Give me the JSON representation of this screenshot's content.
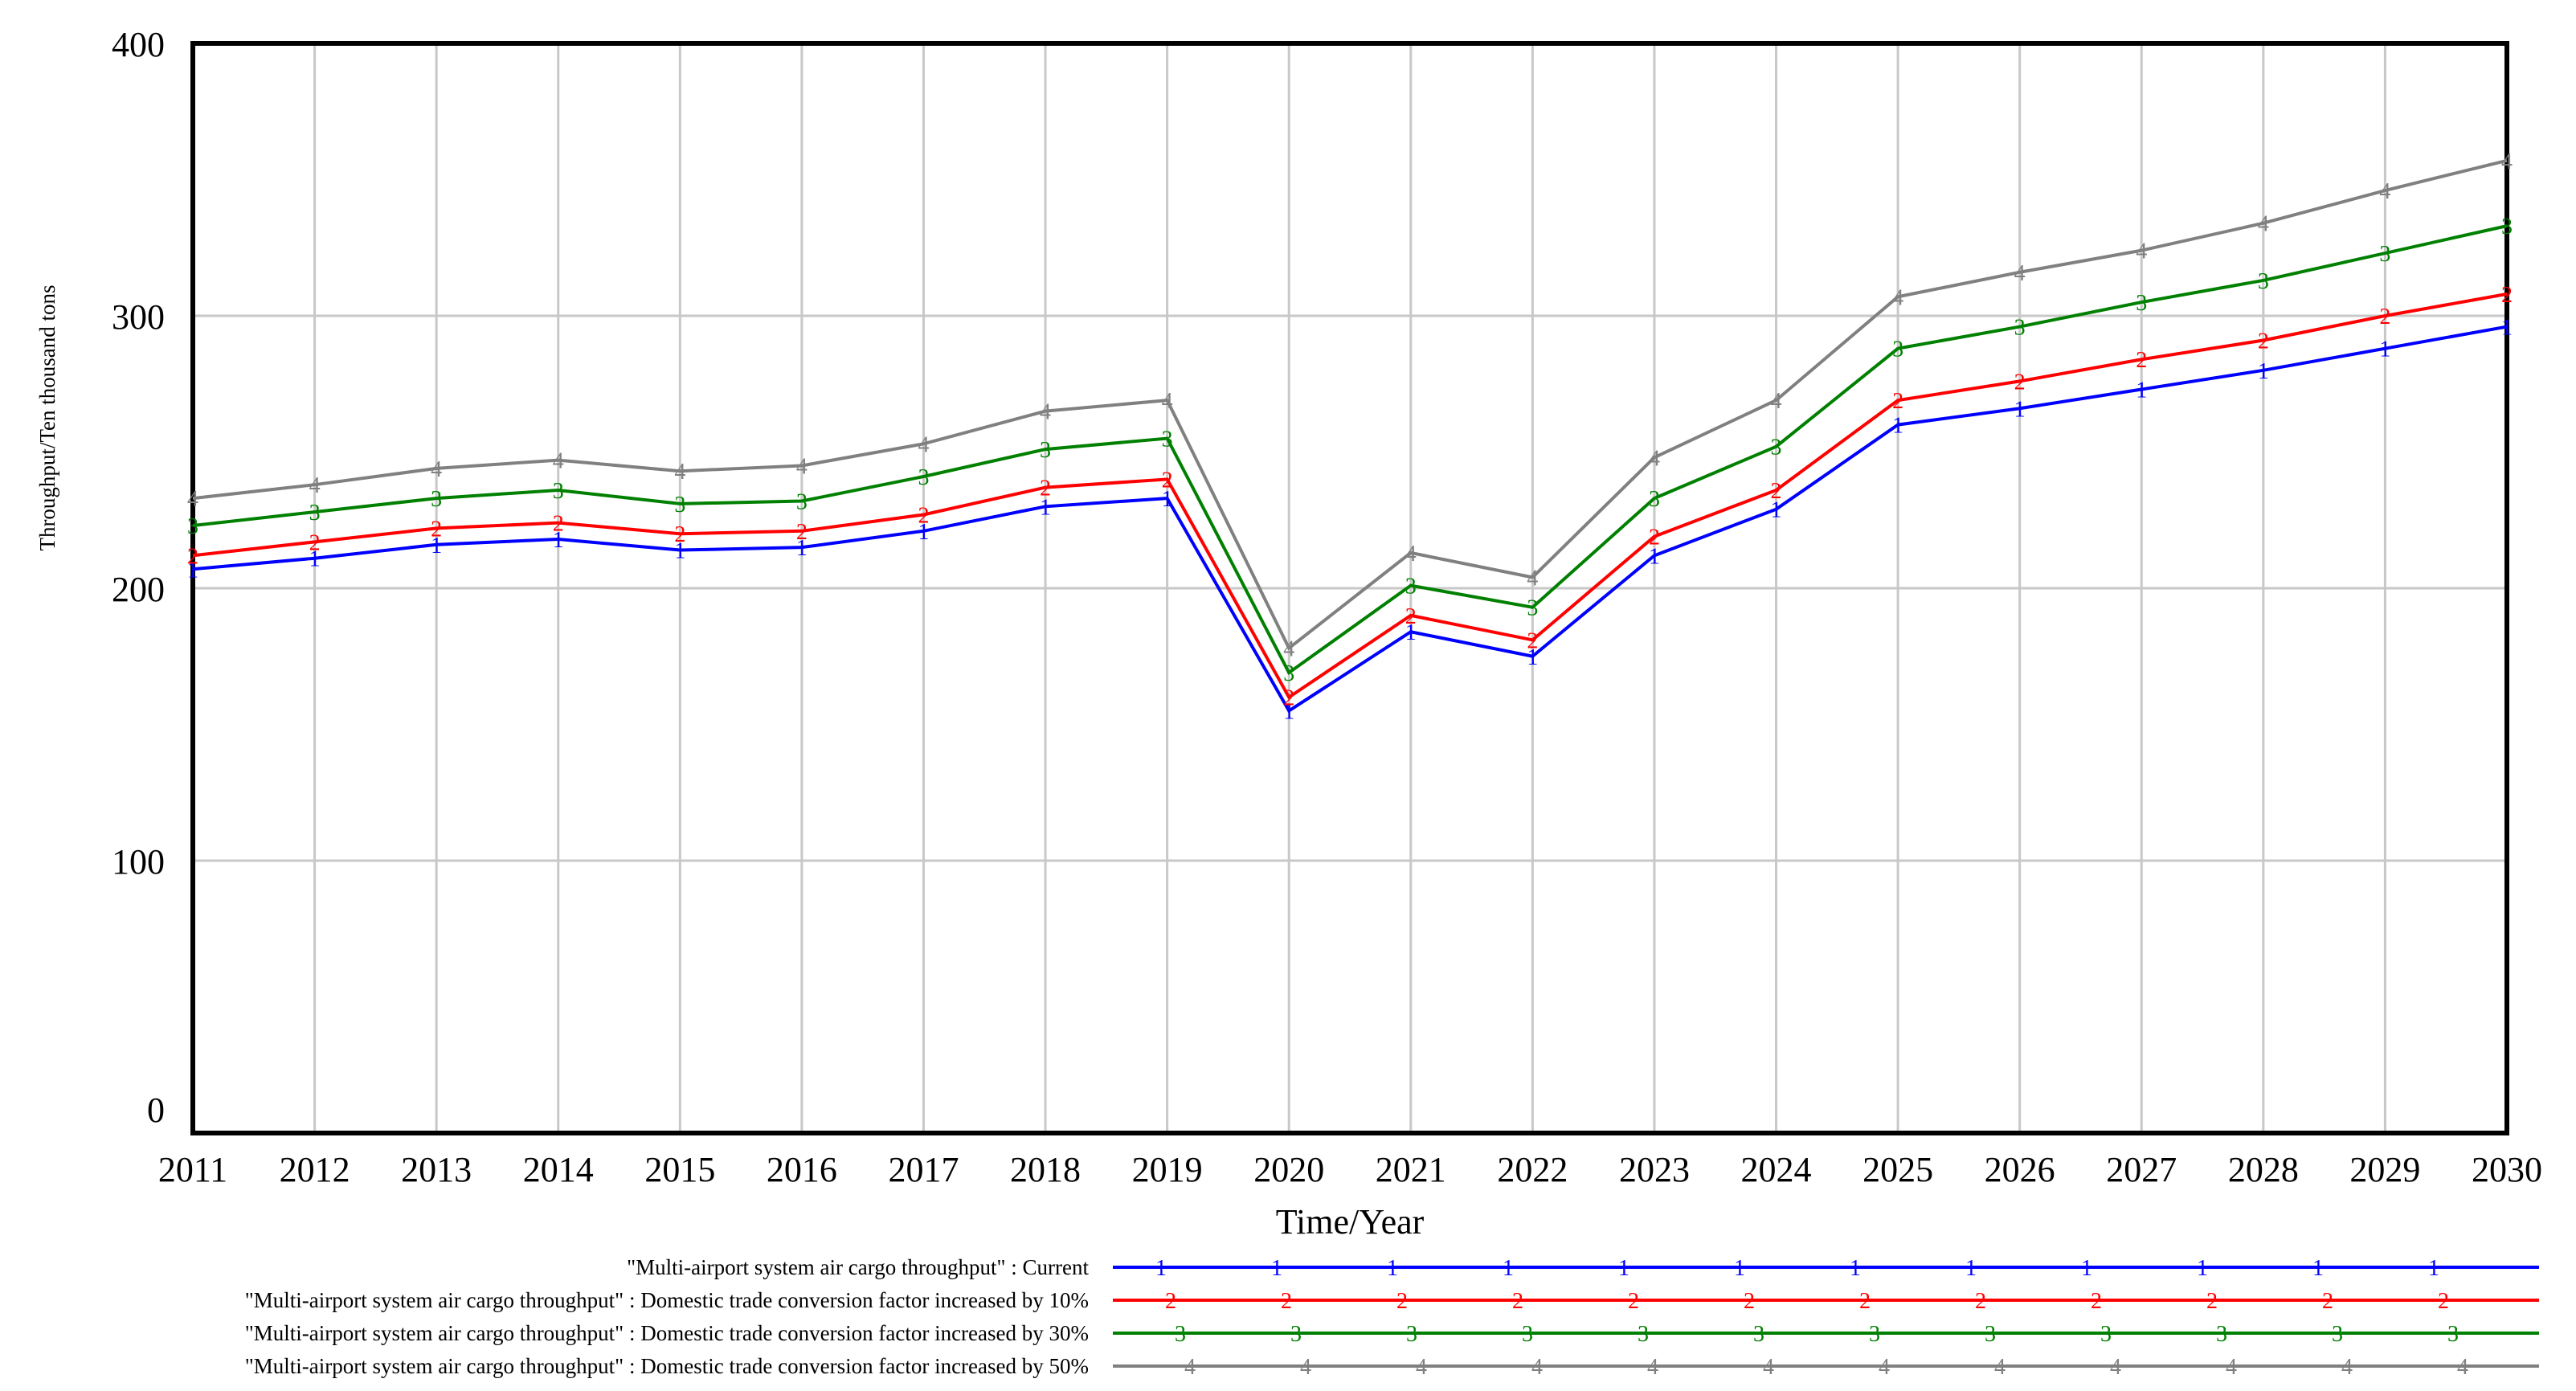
{
  "chart_data": {
    "type": "line",
    "xlabel": "Time/Year",
    "ylabel": "Throughput/Ten thousand tons",
    "ylim": [
      0,
      400
    ],
    "yticks": [
      0,
      100,
      200,
      300,
      400
    ],
    "grid": true,
    "legend_position": "bottom",
    "x": [
      2011,
      2012,
      2013,
      2014,
      2015,
      2016,
      2017,
      2018,
      2019,
      2020,
      2021,
      2022,
      2023,
      2024,
      2025,
      2026,
      2027,
      2028,
      2029,
      2030
    ],
    "series": [
      {
        "name": "\"Multi-airport system air cargo throughput\" : Current",
        "marker": "1",
        "color": "#0000ff",
        "values": [
          207,
          211,
          216,
          218,
          214,
          215,
          221,
          230,
          233,
          155,
          184,
          175,
          212,
          229,
          260,
          266,
          273,
          280,
          288,
          296
        ]
      },
      {
        "name": "\"Multi-airport system air cargo throughput\" : Domestic trade conversion factor increased by 10%",
        "marker": "2",
        "color": "#ff0000",
        "values": [
          212,
          217,
          222,
          224,
          220,
          221,
          227,
          237,
          240,
          160,
          190,
          181,
          219,
          236,
          269,
          276,
          284,
          291,
          300,
          308
        ]
      },
      {
        "name": "\"Multi-airport system air cargo throughput\" : Domestic trade conversion factor increased by 30%",
        "marker": "3",
        "color": "#008000",
        "values": [
          223,
          228,
          233,
          236,
          231,
          232,
          241,
          251,
          255,
          169,
          201,
          193,
          233,
          252,
          288,
          296,
          305,
          313,
          323,
          333
        ]
      },
      {
        "name": "\"Multi-airport system air cargo throughput\" : Domestic trade conversion factor increased by 50%",
        "marker": "4",
        "color": "#808080",
        "values": [
          233,
          238,
          244,
          247,
          243,
          245,
          253,
          265,
          269,
          178,
          213,
          204,
          248,
          269,
          307,
          316,
          324,
          334,
          346,
          357
        ]
      }
    ]
  }
}
